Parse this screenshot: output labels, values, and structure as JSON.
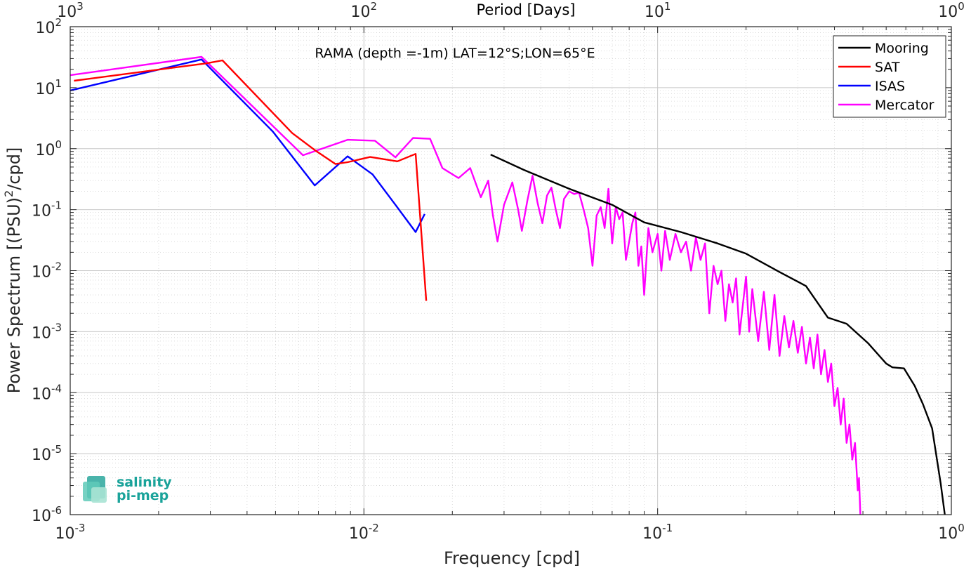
{
  "chart_data": {
    "type": "line",
    "title": "",
    "annotation": "RAMA (depth =-1m) LAT=12°S;LON=65°E",
    "xlabel": "Frequency [cpd]",
    "ylabel": "Power Spectrum [(PSU)²/cpd]",
    "top_xlabel": "Period [Days]",
    "xscale": "log",
    "yscale": "log",
    "xlim": [
      0.001,
      1
    ],
    "ylim": [
      1e-06,
      100
    ],
    "grid": true,
    "legend_position": "top-right",
    "x_ticks": [
      {
        "v": 0.001,
        "b": "10",
        "e": "-3"
      },
      {
        "v": 0.01,
        "b": "10",
        "e": "-2"
      },
      {
        "v": 0.1,
        "b": "10",
        "e": "-1"
      },
      {
        "v": 1,
        "b": "10",
        "e": "0"
      }
    ],
    "y_ticks": [
      {
        "v": 1e-06,
        "b": "10",
        "e": "-6"
      },
      {
        "v": 1e-05,
        "b": "10",
        "e": "-5"
      },
      {
        "v": 0.0001,
        "b": "10",
        "e": "-4"
      },
      {
        "v": 0.001,
        "b": "10",
        "e": "-3"
      },
      {
        "v": 0.01,
        "b": "10",
        "e": "-2"
      },
      {
        "v": 0.1,
        "b": "10",
        "e": "-1"
      },
      {
        "v": 1,
        "b": "10",
        "e": "0"
      },
      {
        "v": 10,
        "b": "10",
        "e": "1"
      },
      {
        "v": 100,
        "b": "10",
        "e": "2"
      }
    ],
    "top_ticks": [
      {
        "v": 0.001,
        "b": "10",
        "e": "3"
      },
      {
        "v": 0.01,
        "b": "10",
        "e": "2"
      },
      {
        "v": 0.1,
        "b": "10",
        "e": "1"
      },
      {
        "v": 1,
        "b": "10",
        "e": "0"
      }
    ],
    "series": [
      {
        "name": "Mooring",
        "color": "#000000",
        "points": [
          [
            0.027,
            0.8
          ],
          [
            0.035,
            0.45
          ],
          [
            0.05,
            0.22
          ],
          [
            0.07,
            0.12
          ],
          [
            0.09,
            0.062
          ],
          [
            0.12,
            0.043
          ],
          [
            0.16,
            0.028
          ],
          [
            0.2,
            0.019
          ],
          [
            0.26,
            0.0095
          ],
          [
            0.32,
            0.0056
          ],
          [
            0.38,
            0.0017
          ],
          [
            0.44,
            0.00135
          ],
          [
            0.52,
            0.00065
          ],
          [
            0.6,
            0.0003
          ],
          [
            0.63,
            0.00026
          ],
          [
            0.69,
            0.00025
          ],
          [
            0.75,
            0.00013
          ],
          [
            0.8,
            6.5e-05
          ],
          [
            0.86,
            2.6e-05
          ],
          [
            0.92,
            3.2e-06
          ],
          [
            0.95,
            1e-06
          ]
        ]
      },
      {
        "name": "SAT",
        "color": "#ff0000",
        "points": [
          [
            0.00103,
            13
          ],
          [
            0.0029,
            25
          ],
          [
            0.0033,
            28
          ],
          [
            0.0057,
            1.8
          ],
          [
            0.0068,
            0.95
          ],
          [
            0.008,
            0.56
          ],
          [
            0.0088,
            0.6
          ],
          [
            0.0105,
            0.73
          ],
          [
            0.013,
            0.62
          ],
          [
            0.015,
            0.82
          ],
          [
            0.0163,
            0.0032
          ]
        ]
      },
      {
        "name": "ISAS",
        "color": "#0000ff",
        "points": [
          [
            0.001,
            9
          ],
          [
            0.0028,
            29
          ],
          [
            0.0049,
            1.9
          ],
          [
            0.0068,
            0.25
          ],
          [
            0.0088,
            0.75
          ],
          [
            0.0107,
            0.38
          ],
          [
            0.0128,
            0.12
          ],
          [
            0.015,
            0.043
          ],
          [
            0.0161,
            0.085
          ]
        ]
      },
      {
        "name": "Mercator",
        "color": "#ff00ff",
        "points": [
          [
            0.001,
            16
          ],
          [
            0.0028,
            32
          ],
          [
            0.0062,
            0.78
          ],
          [
            0.0088,
            1.4
          ],
          [
            0.0109,
            1.35
          ],
          [
            0.0128,
            0.72
          ],
          [
            0.0147,
            1.5
          ],
          [
            0.0168,
            1.45
          ],
          [
            0.0185,
            0.48
          ],
          [
            0.021,
            0.33
          ],
          [
            0.023,
            0.48
          ],
          [
            0.025,
            0.16
          ],
          [
            0.0265,
            0.3
          ],
          [
            0.0275,
            0.08
          ],
          [
            0.0285,
            0.03
          ],
          [
            0.03,
            0.12
          ],
          [
            0.032,
            0.28
          ],
          [
            0.0335,
            0.1
          ],
          [
            0.0345,
            0.045
          ],
          [
            0.036,
            0.14
          ],
          [
            0.0375,
            0.36
          ],
          [
            0.039,
            0.13
          ],
          [
            0.0405,
            0.06
          ],
          [
            0.042,
            0.17
          ],
          [
            0.0435,
            0.23
          ],
          [
            0.045,
            0.1
          ],
          [
            0.0465,
            0.05
          ],
          [
            0.048,
            0.15
          ],
          [
            0.05,
            0.2
          ],
          [
            0.052,
            0.18
          ],
          [
            0.054,
            0.19
          ],
          [
            0.056,
            0.1
          ],
          [
            0.058,
            0.05
          ],
          [
            0.06,
            0.012
          ],
          [
            0.062,
            0.08
          ],
          [
            0.064,
            0.11
          ],
          [
            0.066,
            0.05
          ],
          [
            0.068,
            0.22
          ],
          [
            0.07,
            0.028
          ],
          [
            0.072,
            0.11
          ],
          [
            0.074,
            0.07
          ],
          [
            0.076,
            0.09
          ],
          [
            0.078,
            0.015
          ],
          [
            0.08,
            0.03
          ],
          [
            0.082,
            0.06
          ],
          [
            0.084,
            0.09
          ],
          [
            0.086,
            0.012
          ],
          [
            0.088,
            0.025
          ],
          [
            0.09,
            0.004
          ],
          [
            0.093,
            0.05
          ],
          [
            0.096,
            0.02
          ],
          [
            0.1,
            0.04
          ],
          [
            0.103,
            0.01
          ],
          [
            0.106,
            0.045
          ],
          [
            0.11,
            0.015
          ],
          [
            0.115,
            0.04
          ],
          [
            0.12,
            0.02
          ],
          [
            0.125,
            0.03
          ],
          [
            0.13,
            0.01
          ],
          [
            0.135,
            0.035
          ],
          [
            0.14,
            0.015
          ],
          [
            0.145,
            0.028
          ],
          [
            0.15,
            0.002
          ],
          [
            0.155,
            0.012
          ],
          [
            0.16,
            0.006
          ],
          [
            0.165,
            0.01
          ],
          [
            0.17,
            0.0015
          ],
          [
            0.175,
            0.006
          ],
          [
            0.18,
            0.003
          ],
          [
            0.185,
            0.0075
          ],
          [
            0.19,
            0.0009
          ],
          [
            0.2,
            0.008
          ],
          [
            0.205,
            0.001
          ],
          [
            0.21,
            0.005
          ],
          [
            0.22,
            0.0007
          ],
          [
            0.23,
            0.0045
          ],
          [
            0.24,
            0.0005
          ],
          [
            0.25,
            0.004
          ],
          [
            0.26,
            0.0004
          ],
          [
            0.27,
            0.0018
          ],
          [
            0.28,
            0.00055
          ],
          [
            0.29,
            0.0015
          ],
          [
            0.3,
            0.00045
          ],
          [
            0.31,
            0.0012
          ],
          [
            0.32,
            0.0003
          ],
          [
            0.33,
            0.0008
          ],
          [
            0.34,
            0.00025
          ],
          [
            0.35,
            0.0009
          ],
          [
            0.36,
            0.0002
          ],
          [
            0.37,
            0.0005
          ],
          [
            0.38,
            0.00015
          ],
          [
            0.39,
            0.0003
          ],
          [
            0.4,
            6e-05
          ],
          [
            0.41,
            0.00012
          ],
          [
            0.42,
            3e-05
          ],
          [
            0.43,
            8e-05
          ],
          [
            0.44,
            1.5e-05
          ],
          [
            0.45,
            3e-05
          ],
          [
            0.46,
            8e-06
          ],
          [
            0.47,
            1.5e-05
          ],
          [
            0.48,
            2.5e-06
          ],
          [
            0.485,
            4e-06
          ],
          [
            0.49,
            1e-06
          ]
        ]
      }
    ],
    "logo": {
      "line1": "salinity",
      "line2": "pi-mep"
    }
  }
}
